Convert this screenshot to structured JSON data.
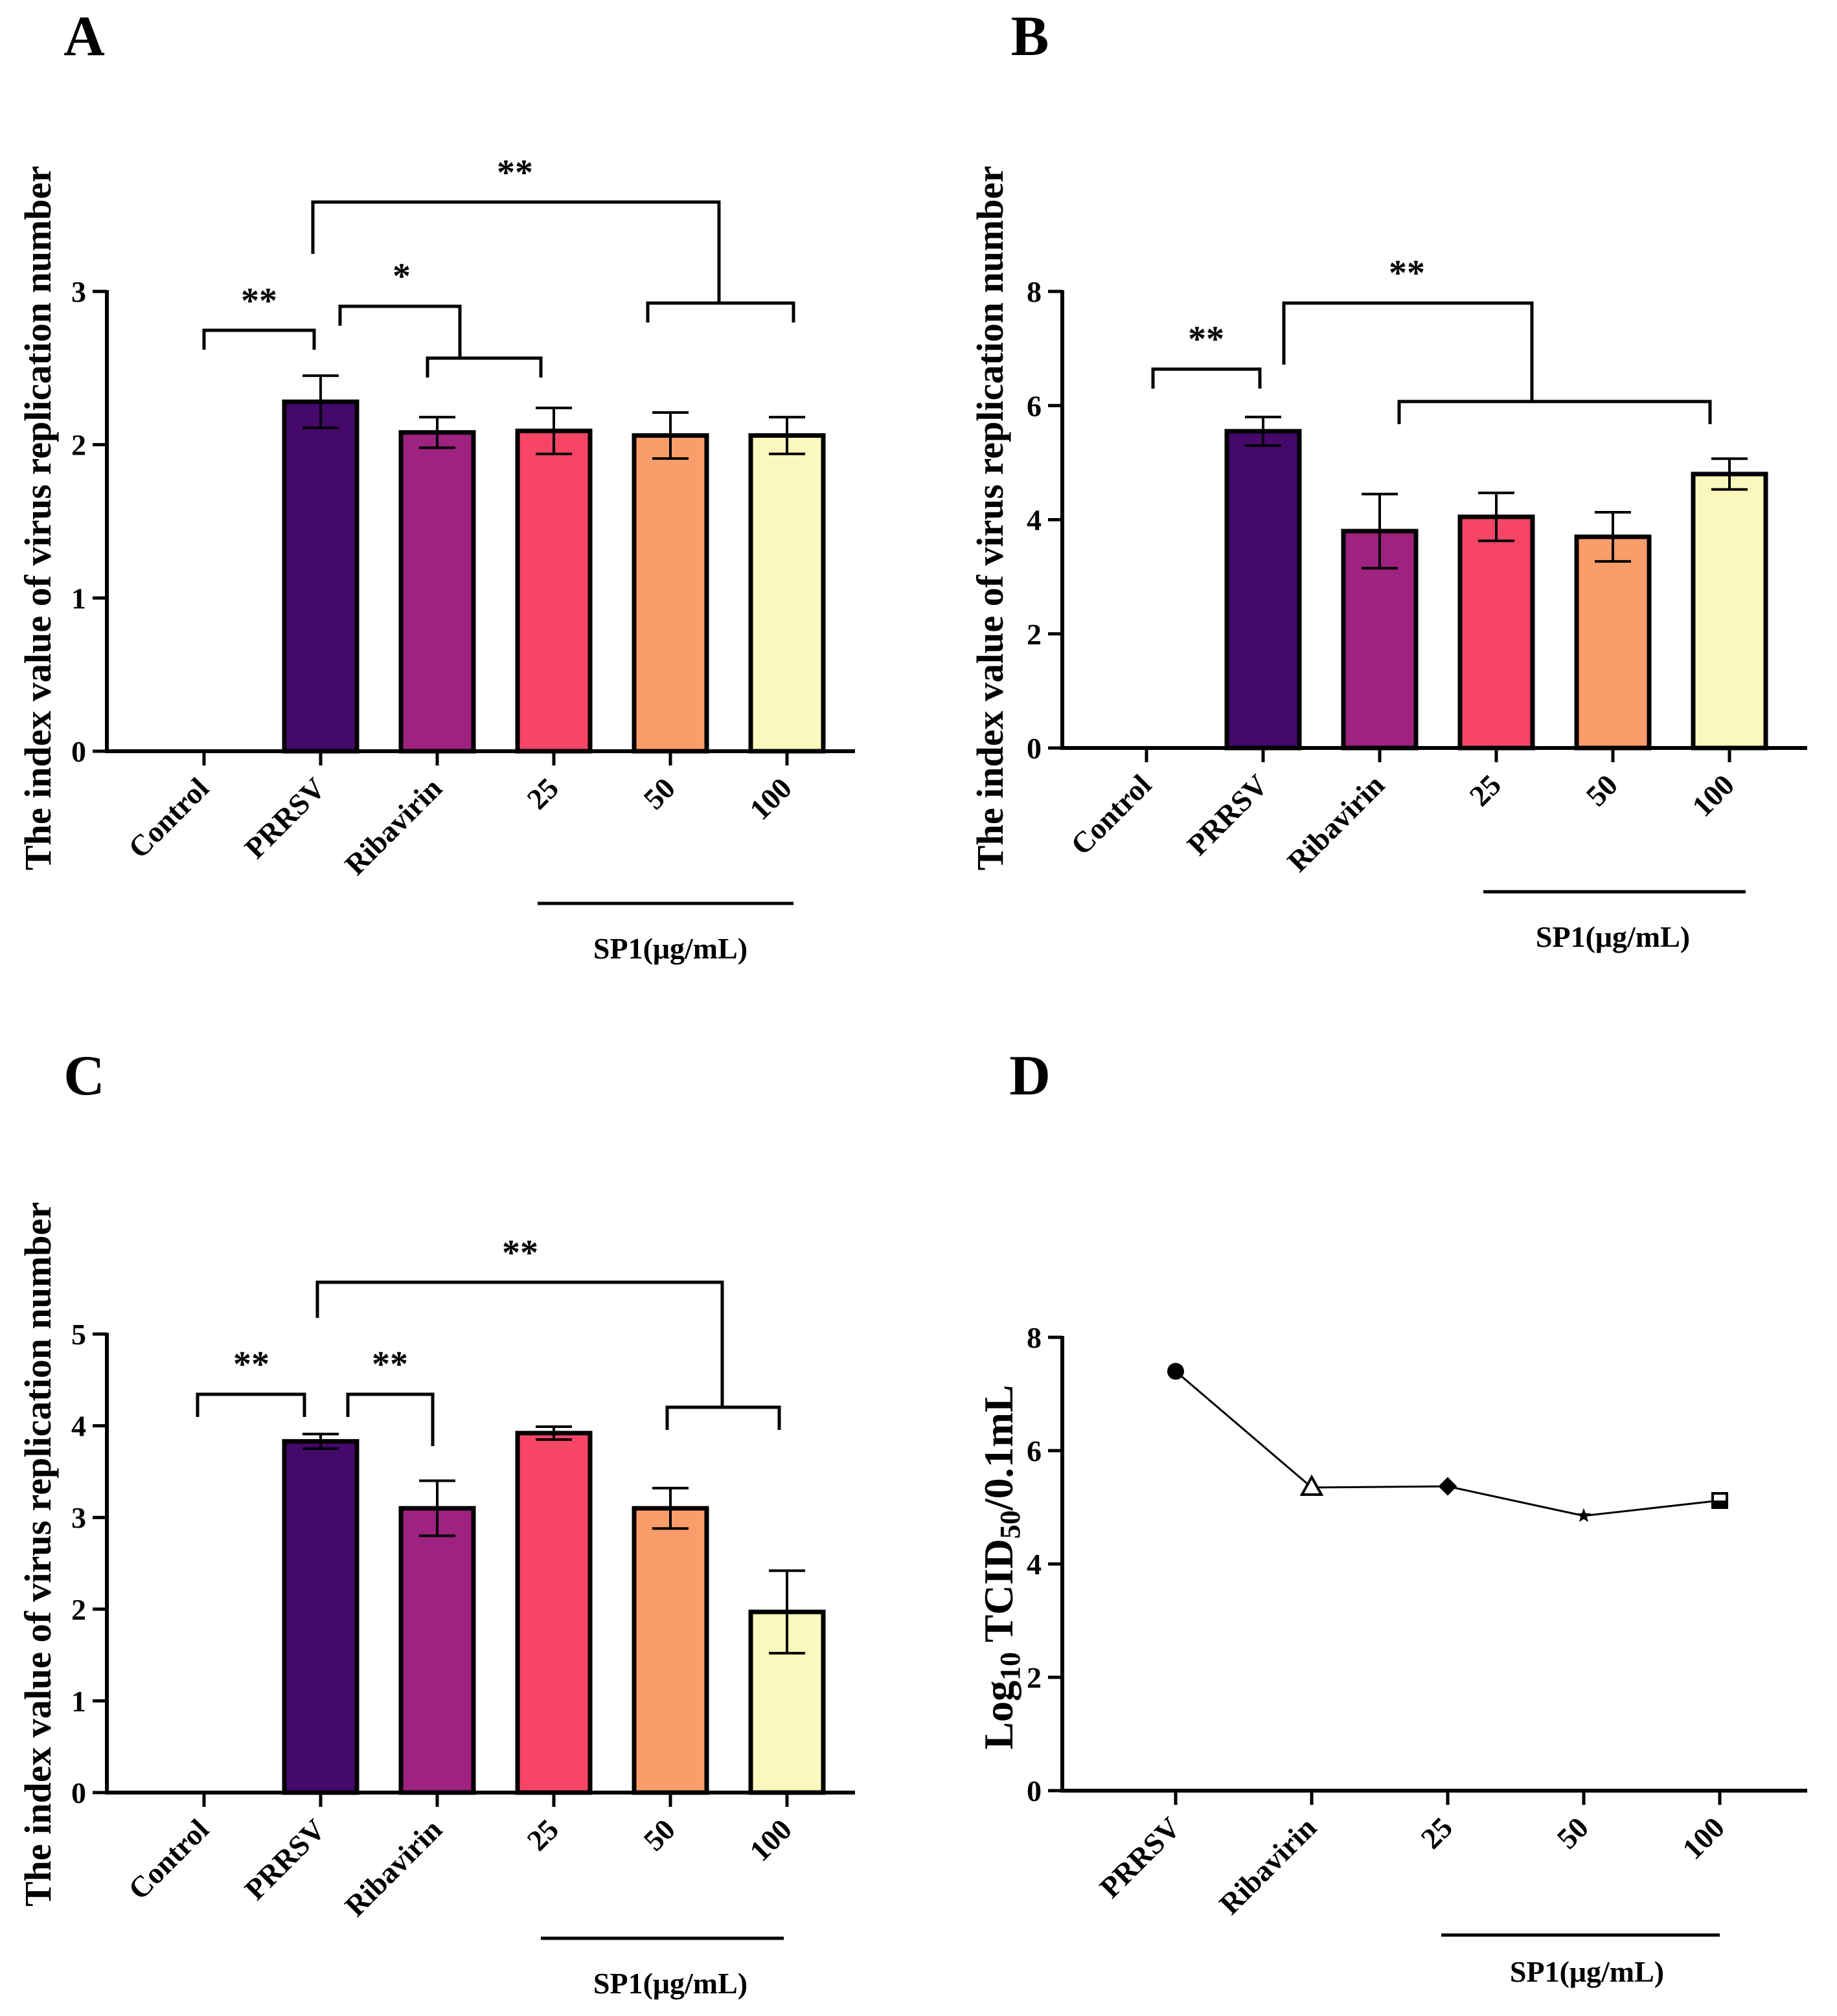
{
  "figure": {
    "panels": [
      "A",
      "B",
      "C",
      "D"
    ]
  },
  "chart_data": [
    {
      "panel": "A",
      "type": "bar",
      "categories": [
        "Control",
        "PRRSV",
        "Ribavirin",
        "25",
        "50",
        "100"
      ],
      "values": [
        0,
        2.28,
        2.08,
        2.09,
        2.06,
        2.06
      ],
      "errors": [
        0,
        0.17,
        0.1,
        0.15,
        0.15,
        0.12
      ],
      "colors": [
        "#ffffff",
        "#45086b",
        "#9e2280",
        "#f74566",
        "#fb9c6b",
        "#fbf8bd"
      ],
      "ylabel": "The index value of virus replication number",
      "ylim": [
        0,
        3
      ],
      "yticks": [
        0,
        1,
        2,
        3
      ],
      "group_label": "SP1(μg/mL)",
      "group_span": [
        "25",
        "100"
      ],
      "significance": [
        {
          "label": "**",
          "from": "Control",
          "to": "PRRSV"
        },
        {
          "label": "*",
          "from": "PRRSV",
          "to": [
            "Ribavirin",
            "25"
          ]
        },
        {
          "label": "**",
          "from": "PRRSV",
          "to": [
            "50",
            "100"
          ]
        }
      ]
    },
    {
      "panel": "B",
      "type": "bar",
      "categories": [
        "Control",
        "PRRSV",
        "Ribavirin",
        "25",
        "50",
        "100"
      ],
      "values": [
        0,
        5.55,
        3.8,
        4.05,
        3.7,
        4.8
      ],
      "errors": [
        0,
        0.25,
        0.65,
        0.42,
        0.43,
        0.27
      ],
      "colors": [
        "#ffffff",
        "#45086b",
        "#9e2280",
        "#f74566",
        "#fb9c6b",
        "#fbf8bd"
      ],
      "ylabel": "The index value of virus replication number",
      "ylim": [
        0,
        8
      ],
      "yticks": [
        0,
        2,
        4,
        6,
        8
      ],
      "group_label": "SP1(μg/mL)",
      "group_span": [
        "25",
        "100"
      ],
      "significance": [
        {
          "label": "**",
          "from": "Control",
          "to": "PRRSV"
        },
        {
          "label": "**",
          "from": "PRRSV",
          "to": [
            "Ribavirin",
            "100"
          ]
        }
      ]
    },
    {
      "panel": "C",
      "type": "bar",
      "categories": [
        "Control",
        "PRRSV",
        "Ribavirin",
        "25",
        "50",
        "100"
      ],
      "values": [
        0,
        3.83,
        3.1,
        3.92,
        3.1,
        1.97
      ],
      "errors": [
        0,
        0.08,
        0.3,
        0.07,
        0.22,
        0.45
      ],
      "colors": [
        "#ffffff",
        "#45086b",
        "#9e2280",
        "#f74566",
        "#fb9c6b",
        "#fbf8bd"
      ],
      "ylabel": "The index value of virus replication number",
      "ylim": [
        0,
        5
      ],
      "yticks": [
        0,
        1,
        2,
        3,
        4,
        5
      ],
      "group_label": "SP1(μg/mL)",
      "group_span": [
        "25",
        "100"
      ],
      "significance": [
        {
          "label": "**",
          "from": "Control",
          "to": "PRRSV"
        },
        {
          "label": "**",
          "from": "PRRSV",
          "to": "Ribavirin"
        },
        {
          "label": "**",
          "from": "PRRSV",
          "to": [
            "50",
            "100"
          ]
        }
      ]
    },
    {
      "panel": "D",
      "type": "line",
      "categories": [
        "PRRSV",
        "Ribavirin",
        "25",
        "50",
        "100"
      ],
      "values": [
        7.4,
        5.35,
        5.37,
        4.85,
        5.12
      ],
      "markers": [
        "filled-circle",
        "open-triangle",
        "diamond",
        "star",
        "open-square"
      ],
      "ylabel_parts": {
        "prefix": "Log",
        "sub1": "10",
        "mid": " TCID",
        "sub2": "50",
        "suffix": "/0.1mL"
      },
      "ylim": [
        0,
        8
      ],
      "yticks": [
        0,
        2,
        4,
        6,
        8
      ],
      "group_label": "SP1(μg/mL)",
      "group_span": [
        "25",
        "100"
      ]
    }
  ]
}
